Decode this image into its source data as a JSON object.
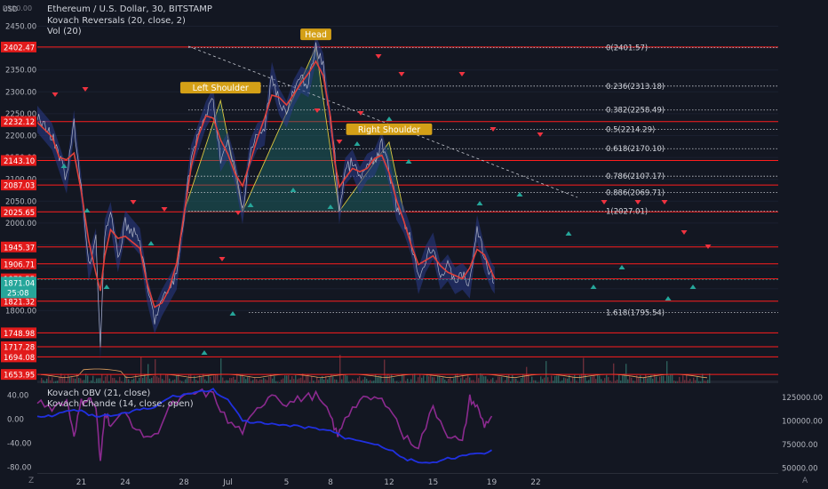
{
  "header": {
    "symbol_line": "Ethereum / U.S. Dollar, 30, BITSTAMP",
    "indicator_1": "Kovach Reversals (20, close, 2)",
    "indicator_2": "Vol (20)",
    "currency": "USD"
  },
  "lower_pane": {
    "legend_1": "Kovach OBV (21, close)",
    "legend_2": "Kovach Chande (14, close, open)",
    "left_ticks": [
      "40.00",
      "0.00",
      "-40.00",
      "-80.00"
    ],
    "right_ticks": [
      "125000.00",
      "100000.00",
      "75000.00",
      "50000.00"
    ]
  },
  "corner_labels": {
    "left": "Z",
    "right": "A"
  },
  "colors": {
    "background": "#131722",
    "resistance_line": "#ff1e1e",
    "price_tag": "#e21b1b",
    "current_tag": "#26a69a",
    "fib_line": "#c5c8d0",
    "pattern_fill": "#1e6c6a",
    "pattern_line": "#d8c640",
    "pattern_label": "#d4a017",
    "moving_average": "#e0403a",
    "band": "#2a3a8a",
    "obv": "#2030e0",
    "chande": "#8b2a8f",
    "up_arrow": "#26a69a",
    "down_arrow": "#ef3340"
  },
  "chart_data": [
    {
      "type": "line",
      "title": "Ethereum / U.S. Dollar, 30, BITSTAMP",
      "ylim": [
        1640,
        2510
      ],
      "y_ticks": [
        1800,
        1850,
        1900,
        1950,
        2000,
        2050,
        2100,
        2150,
        2200,
        2250,
        2300,
        2350,
        2400,
        2450
      ],
      "x_ticks": [
        "21",
        "24",
        "28",
        "Jul",
        "5",
        "8",
        "12",
        "15",
        "19",
        "22"
      ],
      "current_price": {
        "value": 1871.04,
        "label": "1871.04",
        "countdown": "25:08"
      },
      "price": [
        {
          "x": "Jun 18",
          "y": 2240
        },
        {
          "x": "Jun 19",
          "y": 2200
        },
        {
          "x": "Jun 19.5",
          "y": 2150
        },
        {
          "x": "Jun 20",
          "y": 2100
        },
        {
          "x": "Jun 20.5",
          "y": 2230
        },
        {
          "x": "Jun 21",
          "y": 2080
        },
        {
          "x": "Jun 21.5",
          "y": 1900
        },
        {
          "x": "Jun 22",
          "y": 1960
        },
        {
          "x": "Jun 22.3",
          "y": 1720
        },
        {
          "x": "Jun 22.6",
          "y": 1980
        },
        {
          "x": "Jun 23",
          "y": 2020
        },
        {
          "x": "Jun 23.5",
          "y": 1920
        },
        {
          "x": "Jun 24",
          "y": 2000
        },
        {
          "x": "Jun 25",
          "y": 1960
        },
        {
          "x": "Jun 25.5",
          "y": 1850
        },
        {
          "x": "Jun 26",
          "y": 1780
        },
        {
          "x": "Jun 26.5",
          "y": 1820
        },
        {
          "x": "Jun 27",
          "y": 1850
        },
        {
          "x": "Jun 27.5",
          "y": 1880
        },
        {
          "x": "Jun 28",
          "y": 2020
        },
        {
          "x": "Jun 28.5",
          "y": 2150
        },
        {
          "x": "Jun 29",
          "y": 2200
        },
        {
          "x": "Jun 29.5",
          "y": 2250
        },
        {
          "x": "Jun 30",
          "y": 2280
        },
        {
          "x": "Jun 30.5",
          "y": 2150
        },
        {
          "x": "Jul 1",
          "y": 2180
        },
        {
          "x": "Jul 1.5",
          "y": 2120
        },
        {
          "x": "Jul 2",
          "y": 2030
        },
        {
          "x": "Jul 2.5",
          "y": 2160
        },
        {
          "x": "Jul 3",
          "y": 2200
        },
        {
          "x": "Jul 3.5",
          "y": 2210
        },
        {
          "x": "Jul 4",
          "y": 2340
        },
        {
          "x": "Jul 4.5",
          "y": 2280
        },
        {
          "x": "Jul 5",
          "y": 2250
        },
        {
          "x": "Jul 5.5",
          "y": 2300
        },
        {
          "x": "Jul 6",
          "y": 2330
        },
        {
          "x": "Jul 6.5",
          "y": 2320
        },
        {
          "x": "Jul 7",
          "y": 2400
        },
        {
          "x": "Jul 7.5",
          "y": 2360
        },
        {
          "x": "Jul 8",
          "y": 2230
        },
        {
          "x": "Jul 8.3",
          "y": 2150
        },
        {
          "x": "Jul 8.6",
          "y": 2030
        },
        {
          "x": "Jul 9",
          "y": 2120
        },
        {
          "x": "Jul 9.5",
          "y": 2140
        },
        {
          "x": "Jul 10",
          "y": 2100
        },
        {
          "x": "Jul 10.5",
          "y": 2130
        },
        {
          "x": "Jul 11",
          "y": 2140
        },
        {
          "x": "Jul 11.5",
          "y": 2180
        },
        {
          "x": "Jul 12",
          "y": 2120
        },
        {
          "x": "Jul 12.5",
          "y": 2040
        },
        {
          "x": "Jul 13",
          "y": 2010
        },
        {
          "x": "Jul 13.5",
          "y": 1960
        },
        {
          "x": "Jul 14",
          "y": 1870
        },
        {
          "x": "Jul 14.5",
          "y": 1920
        },
        {
          "x": "Jul 15",
          "y": 1950
        },
        {
          "x": "Jul 15.5",
          "y": 1880
        },
        {
          "x": "Jul 16",
          "y": 1900
        },
        {
          "x": "Jul 16.5",
          "y": 1870
        },
        {
          "x": "Jul 17",
          "y": 1880
        },
        {
          "x": "Jul 17.5",
          "y": 1860
        },
        {
          "x": "Jul 18",
          "y": 1990
        },
        {
          "x": "Jul 18.5",
          "y": 1920
        },
        {
          "x": "Jul 19",
          "y": 1880
        },
        {
          "x": "Jul 19.2",
          "y": 1871
        }
      ],
      "horizontal_levels": [
        2402.47,
        2232.12,
        2143.1,
        2087.03,
        2025.65,
        1945.37,
        1906.71,
        1872.55,
        1821.32,
        1748.98,
        1717.28,
        1694.08,
        1653.95
      ],
      "horizontal_level_labels": [
        "2402.47",
        "2232.12",
        "2143.10",
        "2087.03",
        "2025.65",
        "1945.37",
        "1906.71",
        "1872.55",
        "1821.32",
        "1748.98",
        "1717.28",
        "1694.08",
        "1653.95"
      ],
      "fibonacci": [
        {
          "label": "0(2401.57)",
          "value": 2401.57
        },
        {
          "label": "0.236(2313.18)",
          "value": 2313.18
        },
        {
          "label": "0.382(2258.49)",
          "value": 2258.49
        },
        {
          "label": "0.5(2214.29)",
          "value": 2214.29
        },
        {
          "label": "0.618(2170.10)",
          "value": 2170.1
        },
        {
          "label": "0.786(2107.17)",
          "value": 2107.17
        },
        {
          "label": "0.886(2069.71)",
          "value": 2069.71
        },
        {
          "label": "1(2027.01)",
          "value": 2027.01
        },
        {
          "label": "1.618(1795.54)",
          "value": 1795.54
        }
      ],
      "pattern": {
        "name": "Head and Shoulders",
        "points": [
          {
            "x": "Jun 28",
            "y": 2025
          },
          {
            "x": "Jun 30.5",
            "y": 2280
          },
          {
            "x": "Jul 2",
            "y": 2027
          },
          {
            "x": "Jul 7",
            "y": 2402
          },
          {
            "x": "Jul 8.6",
            "y": 2027
          },
          {
            "x": "Jul 12",
            "y": 2185
          },
          {
            "x": "Jul 13",
            "y": 2025
          }
        ],
        "labels": [
          {
            "text": "Left Shoulder",
            "x": "Jun 30.5",
            "y": 2280
          },
          {
            "text": "Head",
            "x": "Jul 7",
            "y": 2402
          },
          {
            "text": "Right Shoulder",
            "x": "Jul 12",
            "y": 2185
          }
        ]
      }
    },
    {
      "type": "line",
      "title": "Kovach OBV / Kovach Chande",
      "series": [
        {
          "name": "Kovach OBV (21, close)",
          "axis": "right",
          "ylim": [
            45000,
            140000
          ],
          "values": [
            {
              "x": "Jun 18",
              "y": 105000
            },
            {
              "x": "Jun 19",
              "y": 106000
            },
            {
              "x": "Jun 20",
              "y": 112000
            },
            {
              "x": "Jun 21",
              "y": 110000
            },
            {
              "x": "Jun 22",
              "y": 104000
            },
            {
              "x": "Jun 23",
              "y": 106000
            },
            {
              "x": "Jun 24",
              "y": 108000
            },
            {
              "x": "Jun 25",
              "y": 112000
            },
            {
              "x": "Jun 26",
              "y": 114000
            },
            {
              "x": "Jun 27",
              "y": 125000
            },
            {
              "x": "Jun 28",
              "y": 128000
            },
            {
              "x": "Jun 29",
              "y": 131000
            },
            {
              "x": "Jun 30",
              "y": 133000
            },
            {
              "x": "Jul 1",
              "y": 122000
            },
            {
              "x": "Jul 2",
              "y": 100000
            },
            {
              "x": "Jul 3",
              "y": 98000
            },
            {
              "x": "Jul 4",
              "y": 96000
            },
            {
              "x": "Jul 5",
              "y": 95000
            },
            {
              "x": "Jul 6",
              "y": 94000
            },
            {
              "x": "Jul 7",
              "y": 92000
            },
            {
              "x": "Jul 8",
              "y": 90000
            },
            {
              "x": "Jul 9",
              "y": 82000
            },
            {
              "x": "Jul 10",
              "y": 80000
            },
            {
              "x": "Jul 11",
              "y": 76000
            },
            {
              "x": "Jul 12",
              "y": 70000
            },
            {
              "x": "Jul 13",
              "y": 60000
            },
            {
              "x": "Jul 14",
              "y": 57000
            },
            {
              "x": "Jul 15",
              "y": 55000
            },
            {
              "x": "Jul 16",
              "y": 60000
            },
            {
              "x": "Jul 17",
              "y": 63000
            },
            {
              "x": "Jul 18",
              "y": 65000
            },
            {
              "x": "Jul 19",
              "y": 68000
            }
          ]
        },
        {
          "name": "Kovach Chande (14, close, open)",
          "axis": "left",
          "ylim": [
            -90,
            60
          ],
          "values": [
            {
              "x": "Jun 18",
              "y": 30
            },
            {
              "x": "Jun 19",
              "y": 20
            },
            {
              "x": "Jun 20",
              "y": 32
            },
            {
              "x": "Jun 20.5",
              "y": -25
            },
            {
              "x": "Jun 21",
              "y": 28
            },
            {
              "x": "Jun 21.5",
              "y": 35
            },
            {
              "x": "Jun 22",
              "y": 20
            },
            {
              "x": "Jun 22.3",
              "y": -75
            },
            {
              "x": "Jun 22.6",
              "y": 15
            },
            {
              "x": "Jun 23",
              "y": -10
            },
            {
              "x": "Jun 24",
              "y": 10
            },
            {
              "x": "Jun 25",
              "y": -25
            },
            {
              "x": "Jun 26",
              "y": -30
            },
            {
              "x": "Jun 27",
              "y": 20
            },
            {
              "x": "Jun 28",
              "y": 35
            },
            {
              "x": "Jun 29",
              "y": 45
            },
            {
              "x": "Jun 30",
              "y": 40
            },
            {
              "x": "Jul 1",
              "y": -5
            },
            {
              "x": "Jul 2",
              "y": -20
            },
            {
              "x": "Jul 3",
              "y": 15
            },
            {
              "x": "Jul 4",
              "y": 45
            },
            {
              "x": "Jul 5",
              "y": 25
            },
            {
              "x": "Jul 6",
              "y": 35
            },
            {
              "x": "Jul 7",
              "y": 40
            },
            {
              "x": "Jul 8",
              "y": 5
            },
            {
              "x": "Jul 8.5",
              "y": -30
            },
            {
              "x": "Jul 9",
              "y": 5
            },
            {
              "x": "Jul 10",
              "y": 30
            },
            {
              "x": "Jul 11",
              "y": 35
            },
            {
              "x": "Jul 12",
              "y": 25
            },
            {
              "x": "Jul 13",
              "y": -30
            },
            {
              "x": "Jul 14",
              "y": -45
            },
            {
              "x": "Jul 15",
              "y": 20
            },
            {
              "x": "Jul 16",
              "y": -25
            },
            {
              "x": "Jul 17",
              "y": -40
            },
            {
              "x": "Jul 17.5",
              "y": 35
            },
            {
              "x": "Jul 18",
              "y": 20
            },
            {
              "x": "Jul 18.5",
              "y": -10
            },
            {
              "x": "Jul 19",
              "y": 5
            }
          ]
        }
      ]
    }
  ]
}
